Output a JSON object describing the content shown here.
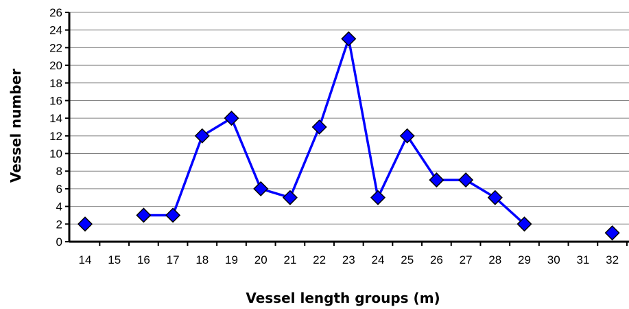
{
  "chart_data": {
    "type": "line",
    "title": "",
    "xlabel": "Vessel length  groups (m)",
    "ylabel": "Vessel number",
    "categories": [
      "14",
      "15",
      "16",
      "17",
      "18",
      "19",
      "20",
      "21",
      "22",
      "23",
      "24",
      "25",
      "26",
      "27",
      "28",
      "29",
      "30",
      "31",
      "32"
    ],
    "y_ticks": [
      "0",
      "2",
      "4",
      "6",
      "8",
      "10",
      "12",
      "14",
      "16",
      "18",
      "20",
      "22",
      "24",
      "26"
    ],
    "ylim": [
      0,
      26
    ],
    "grid": true,
    "legend": "none",
    "series": [
      {
        "values": [
          2,
          null,
          3,
          3,
          12,
          14,
          6,
          5,
          13,
          23,
          5,
          12,
          7,
          7,
          5,
          2,
          null,
          null,
          1
        ]
      }
    ],
    "colors": {
      "line": "#0000ff",
      "marker_fill": "#0000ff",
      "marker_stroke": "#000000",
      "grid": "#808080",
      "axis": "#000000"
    }
  }
}
